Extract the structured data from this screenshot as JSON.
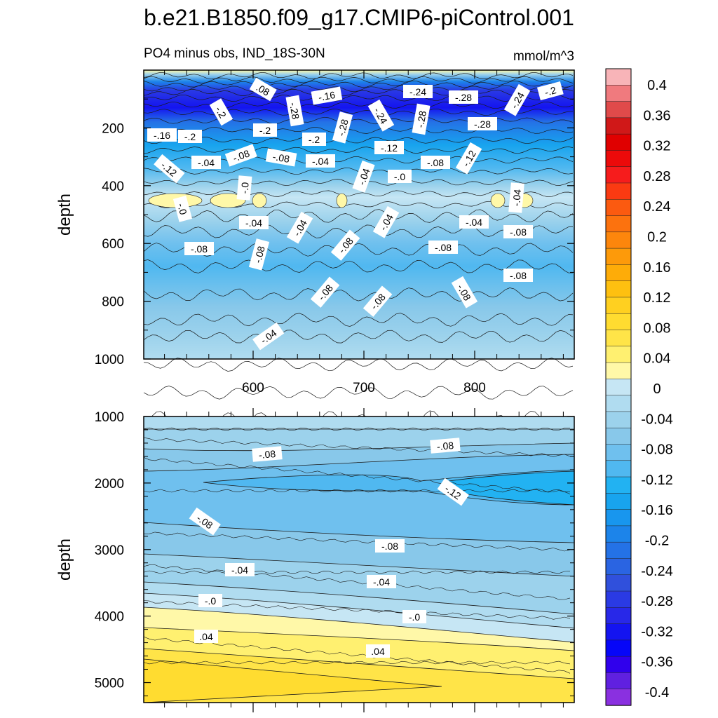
{
  "chart_data": {
    "type": "heatmap",
    "title": "b.e21.B1850.f09_g17.CMIP6-piControl.001",
    "subtitle_left": "PO4 minus obs, IND_18S-30N",
    "subtitle_right": "mmol/m^3",
    "colorbar": {
      "tick_labels": [
        "0.4",
        "0.36",
        "0.32",
        "0.28",
        "0.24",
        "0.2",
        "0.16",
        "0.12",
        "0.08",
        "0.04",
        "0",
        "-0.04",
        "-0.08",
        "-0.12",
        "-0.16",
        "-0.2",
        "-0.24",
        "-0.28",
        "-0.32",
        "-0.36",
        "-0.4"
      ],
      "colors": [
        "#f8b4b8",
        "#f07a7e",
        "#e04a4a",
        "#d01818",
        "#e00000",
        "#ec0a0a",
        "#f61c1c",
        "#fa3a12",
        "#fb5a10",
        "#fc720e",
        "#fd860c",
        "#fd9a0a",
        "#feac08",
        "#fec010",
        "#ffd020",
        "#ffdc30",
        "#ffe448",
        "#fff070",
        "#fff8a8",
        "#c6e6f4",
        "#b0dcf0",
        "#9cd2ec",
        "#88c8ea",
        "#6fc0ee",
        "#50b8f0",
        "#22b2f2",
        "#18a4ee",
        "#1896ee",
        "#1c84ea",
        "#2472e6",
        "#2a64e2",
        "#3050dc",
        "#2a3ae4",
        "#2828e8",
        "#1414f0",
        "#0606f8",
        "#3000ec",
        "#6020e0",
        "#8a30e0"
      ]
    },
    "panels": [
      {
        "name": "upper",
        "ylabel": "depth",
        "ylim": [
          0,
          1000
        ],
        "yticks": [
          "200",
          "400",
          "600",
          "800",
          "1000"
        ],
        "xticks": [
          "600",
          "700",
          "800"
        ],
        "contour_labels": [
          ".08",
          "-.16",
          "-.24",
          "-.2",
          "-.28",
          "-.28",
          "-.24",
          "-.28",
          "-.28",
          "-.24",
          "-.28",
          "-.2",
          "-.2",
          "-.2",
          "-.16",
          "-.2",
          "-.12",
          "-.08",
          "-.04",
          "-.12",
          "-.08",
          "-.04",
          "-.12",
          "-.08",
          "-.04",
          "-.0",
          "-.0",
          "-.0",
          "-.04",
          "-.04",
          "-.04",
          "-.04",
          "-.04",
          "-.08",
          "-.08",
          "-.08",
          "-.08",
          "-.08",
          "-.08",
          "-.08",
          "-.08",
          "-.08",
          "-.04"
        ]
      },
      {
        "name": "lower",
        "ylabel": "depth",
        "ylim": [
          1000,
          5300
        ],
        "yticks": [
          "1000",
          "2000",
          "3000",
          "4000",
          "5000"
        ],
        "contour_labels": [
          "-.08",
          "-.08",
          "-.12",
          "-.08",
          "-.08",
          "-.04",
          "-.04",
          "-.0",
          "-.0",
          ".04",
          ".04"
        ]
      }
    ]
  }
}
